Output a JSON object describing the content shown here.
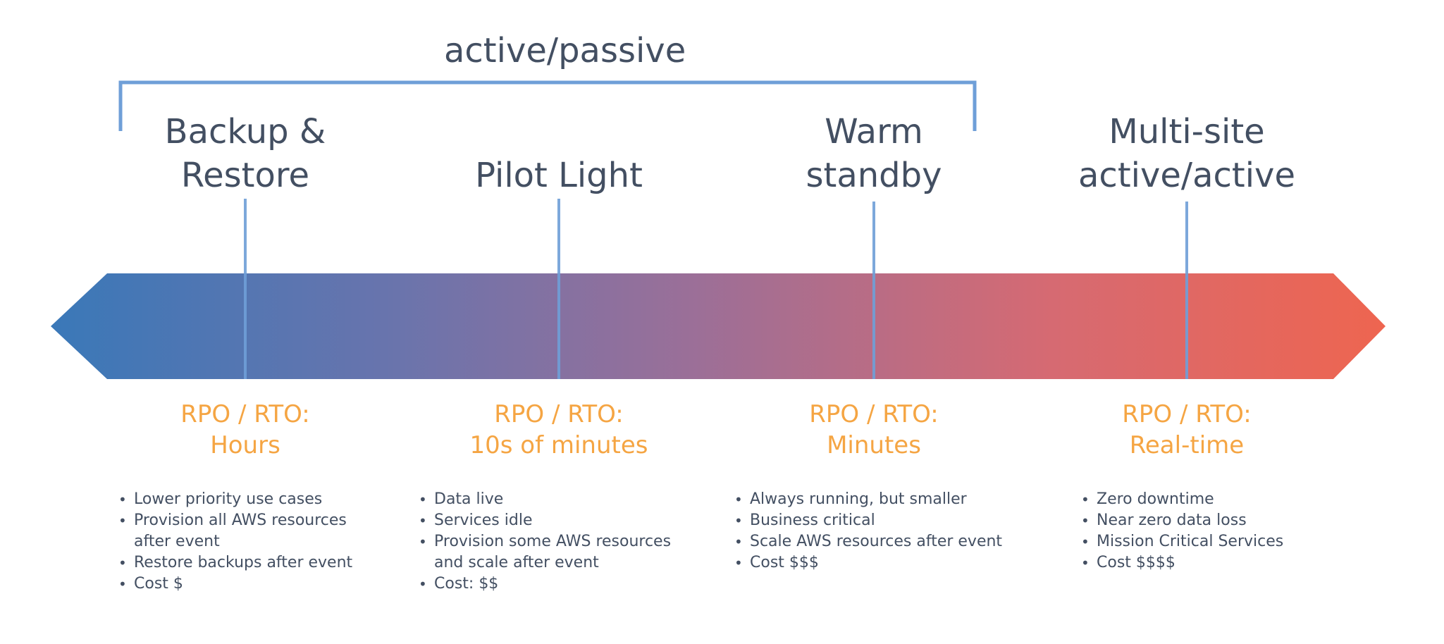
{
  "bracket": {
    "label": "active/passive"
  },
  "colors": {
    "text": "#434f62",
    "accent_orange": "#f5a543",
    "connector_blue": "#6f9fd8",
    "gradient_start": "#3a78b8",
    "gradient_mid": "#9b6f98",
    "gradient_end": "#ee6550"
  },
  "strategies": [
    {
      "title_lines": [
        "Backup &",
        "Restore"
      ],
      "rpo_line1": "RPO / RTO:",
      "rpo_line2": "Hours",
      "bullets": [
        "Lower priority use cases",
        "Provision all AWS resources",
        "after event",
        "Restore backups after event",
        "Cost $"
      ]
    },
    {
      "title_lines": [
        "Pilot Light"
      ],
      "rpo_line1": "RPO / RTO:",
      "rpo_line2": "10s of minutes",
      "bullets": [
        "Data live",
        "Services idle",
        "Provision some AWS resources",
        "and scale after event",
        "Cost: $$"
      ]
    },
    {
      "title_lines": [
        "Warm",
        "standby"
      ],
      "rpo_line1": "RPO / RTO:",
      "rpo_line2": "Minutes",
      "bullets": [
        "Always running, but smaller",
        "Business critical",
        "Scale AWS resources after event",
        "Cost $$$"
      ]
    },
    {
      "title_lines": [
        "Multi-site",
        "active/active"
      ],
      "rpo_line1": "RPO / RTO:",
      "rpo_line2": "Real-time",
      "bullets": [
        "Zero downtime",
        "Near zero data loss",
        "Mission Critical Services",
        "Cost $$$$"
      ]
    }
  ]
}
